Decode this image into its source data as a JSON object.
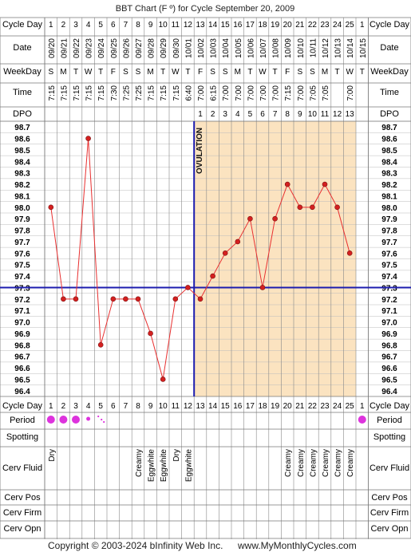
{
  "title": "BBT Chart (F º) for Cycle September 20, 2009",
  "row_labels": {
    "cycle_day": "Cycle Day",
    "date": "Date",
    "weekday": "WeekDay",
    "time": "Time",
    "dpo": "DPO",
    "period": "Period",
    "spotting": "Spotting",
    "cerv_fluid": "Cerv Fluid",
    "cerv_pos": "Cerv Pos",
    "cerv_firm": "Cerv Firm",
    "cerv_opn": "Cerv Opn"
  },
  "footer": {
    "copyright": "Copyright © 2003-2024 bInfinity Web Inc.",
    "site": "www.MyMonthlyCycles.com"
  },
  "colors": {
    "line": "#e83030",
    "point": "#d42020",
    "coverline": "#1c1caf",
    "luteal_bg": "#fbe3c0",
    "period_dot": "#dd33dd",
    "grid": "#bbbbbb"
  },
  "chart_data": {
    "type": "line",
    "title": "BBT Chart (F º) for Cycle September 20, 2009",
    "cycle_days": [
      "1",
      "2",
      "3",
      "4",
      "5",
      "6",
      "7",
      "8",
      "9",
      "10",
      "11",
      "12",
      "13",
      "14",
      "15",
      "16",
      "17",
      "18",
      "19",
      "20",
      "21",
      "22",
      "23",
      "24",
      "25",
      "1"
    ],
    "dates": [
      "09/20",
      "09/21",
      "09/22",
      "09/23",
      "09/24",
      "09/25",
      "09/26",
      "09/27",
      "09/28",
      "09/29",
      "09/30",
      "10/01",
      "10/02",
      "10/03",
      "10/04",
      "10/05",
      "10/06",
      "10/07",
      "10/08",
      "10/09",
      "10/10",
      "10/11",
      "10/12",
      "10/13",
      "10/14",
      "10/15"
    ],
    "weekdays": [
      "S",
      "M",
      "T",
      "W",
      "T",
      "F",
      "S",
      "S",
      "M",
      "T",
      "W",
      "T",
      "F",
      "S",
      "S",
      "M",
      "T",
      "W",
      "T",
      "F",
      "S",
      "S",
      "M",
      "T",
      "W",
      "T"
    ],
    "times": [
      "7:15",
      "7:15",
      "7:15",
      "7:15",
      "7:15",
      "7:30",
      "7:25",
      "7:25",
      "7:15",
      "7:15",
      "7:15",
      "6:40",
      "7:00",
      "6:15",
      "7:00",
      "7:00",
      "7:00",
      "7:00",
      "7:00",
      "7:15",
      "7:00",
      "7:05",
      "7:05",
      "",
      "7:00",
      ""
    ],
    "dpo": [
      "",
      "",
      "",
      "",
      "",
      "",
      "",
      "",
      "",
      "",
      "",
      "",
      "1",
      "2",
      "3",
      "4",
      "5",
      "6",
      "7",
      "8",
      "9",
      "10",
      "11",
      "12",
      "13",
      ""
    ],
    "temperatures": [
      98.0,
      97.2,
      97.2,
      98.6,
      96.8,
      97.2,
      97.2,
      97.2,
      96.9,
      96.5,
      97.2,
      97.3,
      97.2,
      97.4,
      97.6,
      97.7,
      97.9,
      97.3,
      97.9,
      98.2,
      98.0,
      98.0,
      98.2,
      98.0,
      97.6,
      null
    ],
    "y_ticks": [
      "98.7",
      "98.6",
      "98.5",
      "98.4",
      "98.3",
      "98.2",
      "98.1",
      "98.0",
      "97.9",
      "97.8",
      "97.7",
      "97.6",
      "97.5",
      "97.4",
      "97.3",
      "97.2",
      "97.1",
      "97.0",
      "96.9",
      "96.8",
      "96.7",
      "96.6",
      "96.5",
      "96.4"
    ],
    "ylim": [
      96.4,
      98.7
    ],
    "coverline": 97.3,
    "ovulation_day": 12,
    "ovulation_label": "OVULATION",
    "period": [
      "heavy",
      "heavy",
      "heavy",
      "medium",
      "light",
      "",
      "",
      "",
      "",
      "",
      "",
      "",
      "",
      "",
      "",
      "",
      "",
      "",
      "",
      "",
      "",
      "",
      "",
      "",
      "",
      "heavy"
    ],
    "spotting": [
      "",
      "",
      "",
      "",
      "",
      "",
      "",
      "",
      "",
      "",
      "",
      "",
      "",
      "",
      "",
      "",
      "",
      "",
      "",
      "",
      "",
      "",
      "",
      "",
      "",
      ""
    ],
    "cerv_fluid": [
      "Dry",
      "",
      "",
      "",
      "",
      "",
      "",
      "Creamy",
      "Eggwhite",
      "Eggwhite",
      "Dry",
      "Eggwhite",
      "",
      "",
      "",
      "",
      "",
      "",
      "",
      "Creamy",
      "Creamy",
      "Creamy",
      "Creamy",
      "Creamy",
      "Creamy",
      ""
    ],
    "grid": true
  }
}
